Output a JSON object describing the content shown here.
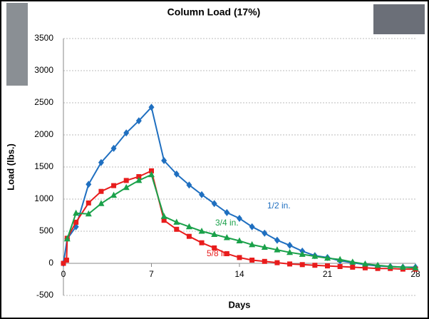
{
  "chart_data": {
    "type": "line",
    "title": "Column Load (17%)",
    "x_label": "Days",
    "y_label": "Load (lbs.)",
    "xlim": [
      0,
      28
    ],
    "xticks": [
      0,
      7,
      14,
      21,
      28
    ],
    "ylim": [
      -500,
      3500
    ],
    "yticks": [
      -500,
      0,
      500,
      1000,
      1500,
      2000,
      2500,
      3000,
      3500
    ],
    "grid": true,
    "series": [
      {
        "name": "1/2 in.",
        "color": "#1f6fc0",
        "marker": "diamond",
        "x": [
          0,
          0.3,
          1,
          2,
          3,
          4,
          5,
          6,
          7,
          8,
          9,
          10,
          11,
          12,
          13,
          14,
          15,
          16,
          17,
          18,
          19,
          20,
          21,
          22,
          23,
          24,
          25,
          26,
          27,
          28
        ],
        "values": [
          0,
          380,
          570,
          1230,
          1570,
          1790,
          2030,
          2220,
          2430,
          1600,
          1390,
          1220,
          1070,
          930,
          790,
          700,
          570,
          470,
          360,
          280,
          190,
          120,
          90,
          40,
          10,
          -20,
          -40,
          -50,
          -60,
          -60
        ]
      },
      {
        "name": "5/8 in.",
        "color": "#e81c1c",
        "marker": "square",
        "x": [
          0,
          0.25,
          0.3,
          1,
          2,
          3,
          4,
          5,
          6,
          7,
          8,
          9,
          10,
          11,
          12,
          13,
          14,
          15,
          16,
          17,
          18,
          19,
          20,
          21,
          22,
          23,
          24,
          25,
          26,
          27,
          28
        ],
        "values": [
          0,
          50,
          390,
          640,
          940,
          1120,
          1210,
          1290,
          1350,
          1440,
          670,
          530,
          420,
          320,
          240,
          150,
          90,
          50,
          30,
          10,
          -10,
          -20,
          -30,
          -40,
          -50,
          -60,
          -70,
          -80,
          -80,
          -90,
          -90
        ]
      },
      {
        "name": "3/4 in.",
        "color": "#1aa14a",
        "marker": "triangle",
        "x": [
          0.3,
          1,
          2,
          3,
          4,
          5,
          6,
          7,
          8,
          9,
          10,
          11,
          12,
          13,
          14,
          15,
          16,
          17,
          18,
          19,
          20,
          21,
          22,
          23,
          24,
          25,
          26,
          27,
          28
        ],
        "values": [
          380,
          780,
          770,
          930,
          1060,
          1180,
          1290,
          1380,
          730,
          640,
          570,
          500,
          450,
          400,
          350,
          290,
          250,
          210,
          170,
          140,
          110,
          80,
          60,
          20,
          -10,
          -30,
          -50,
          -60,
          -70
        ]
      }
    ]
  }
}
